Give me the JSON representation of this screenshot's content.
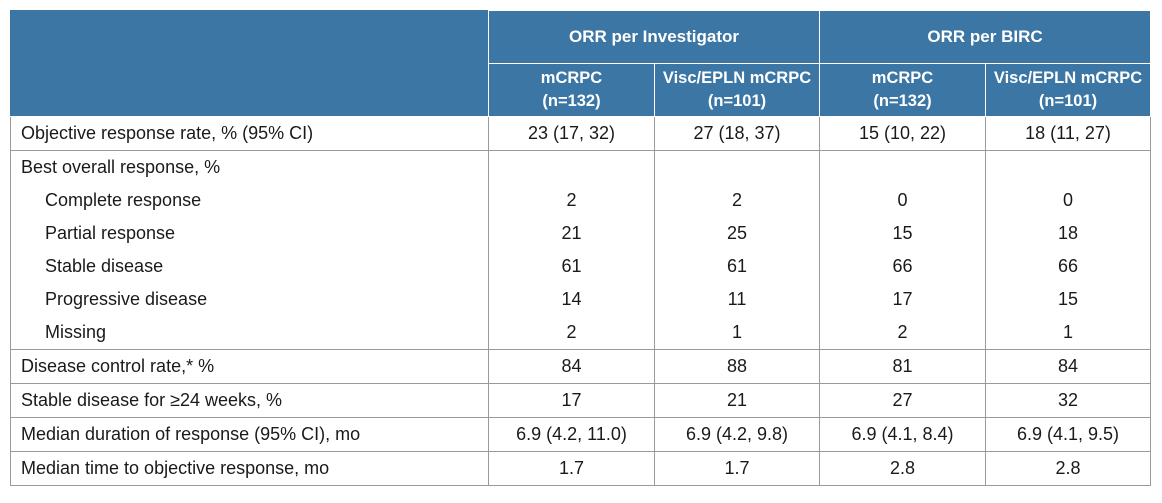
{
  "header": {
    "groups": [
      "ORR per Investigator",
      "ORR per BIRC"
    ],
    "columns": [
      {
        "line1": "mCRPC",
        "line2": "(n=132)"
      },
      {
        "line1": "Visc/EPLN mCRPC",
        "line2": "(n=101)"
      },
      {
        "line1": "mCRPC",
        "line2": "(n=132)"
      },
      {
        "line1": "Visc/EPLN mCRPC",
        "line2": "(n=101)"
      }
    ]
  },
  "rows": [
    {
      "label": "Objective response rate, % (95% CI)",
      "values": [
        "23 (17, 32)",
        "27 (18, 37)",
        "15 (10, 22)",
        "18 (11, 27)"
      ]
    },
    {
      "label": "Best overall response, %",
      "values": [
        "",
        "",
        "",
        ""
      ]
    },
    {
      "label": "Complete response",
      "values": [
        "2",
        "2",
        "0",
        "0"
      ]
    },
    {
      "label": "Partial response",
      "values": [
        "21",
        "25",
        "15",
        "18"
      ]
    },
    {
      "label": "Stable disease",
      "values": [
        "61",
        "61",
        "66",
        "66"
      ]
    },
    {
      "label": "Progressive disease",
      "values": [
        "14",
        "11",
        "17",
        "15"
      ]
    },
    {
      "label": "Missing",
      "values": [
        "2",
        "1",
        "2",
        "1"
      ]
    },
    {
      "label": "Disease control rate,* %",
      "values": [
        "84",
        "88",
        "81",
        "84"
      ]
    },
    {
      "label": "Stable disease for ≥24 weeks, %",
      "values": [
        "17",
        "21",
        "27",
        "32"
      ]
    },
    {
      "label": "Median duration of response (95% CI), mo",
      "values": [
        "6.9 (4.2, 11.0)",
        "6.9 (4.2, 9.8)",
        "6.9 (4.1, 8.4)",
        "6.9 (4.1, 9.5)"
      ]
    },
    {
      "label": "Median time to objective response, mo",
      "values": [
        "1.7",
        "1.7",
        "2.8",
        "2.8"
      ]
    }
  ]
}
